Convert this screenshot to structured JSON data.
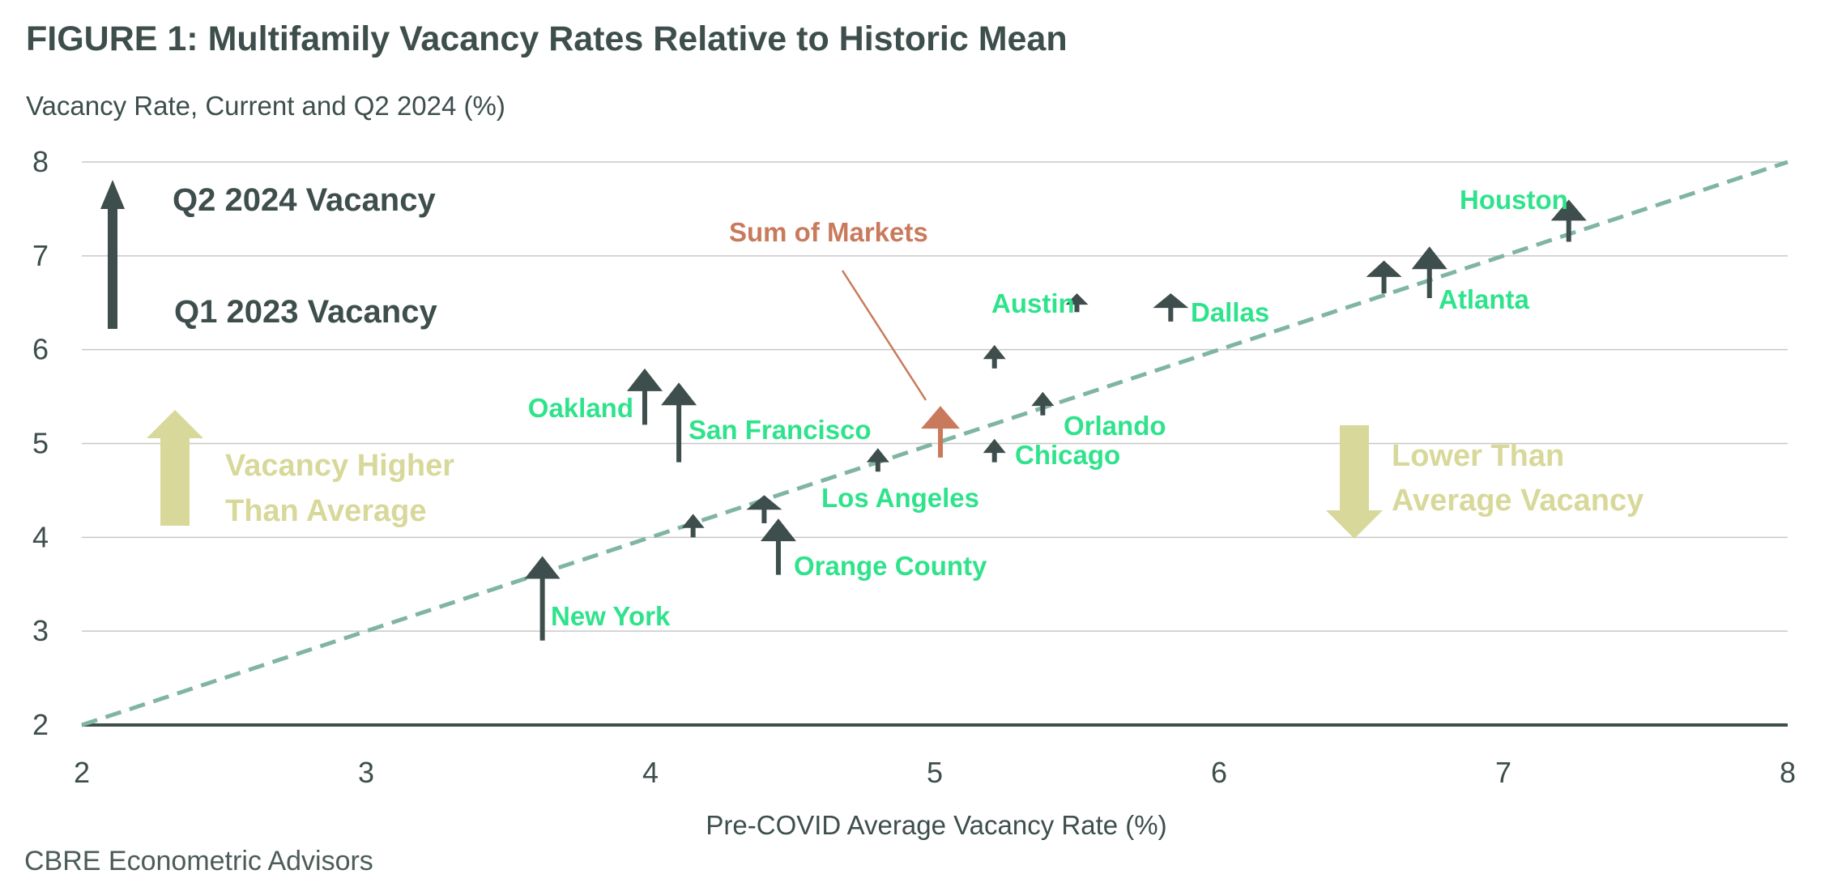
{
  "header": {
    "title": "FIGURE 1: Multifamily Vacancy Rates Relative to Historic Mean",
    "subtitle": "Vacancy Rate, Current and Q2 2024 (%)"
  },
  "footer": {
    "source": "CBRE Econometric Advisors"
  },
  "legend": {
    "top_label": "Q2 2024 Vacancy",
    "bottom_label": "Q1 2023 Vacancy"
  },
  "annotations": {
    "higher": [
      "Vacancy Higher",
      "Than Average"
    ],
    "lower": [
      "Lower Than",
      "Average Vacancy"
    ],
    "sum_label": "Sum of Markets"
  },
  "colors": {
    "arrow": "#3d4e4c",
    "market_label": "#2ee38b",
    "sum_arrow": "#c97a5c",
    "diagonal": "#7fb5a2",
    "note": "#d8d89a",
    "grid": "#c8c8c8",
    "axis": "#3d4e4c"
  },
  "chart_data": {
    "type": "scatter",
    "xlabel": "Pre-COVID Average Vacancy Rate (%)",
    "ylabel": "",
    "xlim": [
      2,
      8
    ],
    "ylim": [
      2,
      8
    ],
    "xticks": [
      "2",
      "3",
      "4",
      "5",
      "6",
      "7",
      "8"
    ],
    "yticks": [
      "2",
      "3",
      "4",
      "5",
      "6",
      "7",
      "8"
    ],
    "grid": "horizontal",
    "reference_line": "y = x (dashed)",
    "series": [
      {
        "points": [
          {
            "label": "New York",
            "x": 3.62,
            "y_from": 2.9,
            "y_to": 3.8
          },
          {
            "label": "Oakland",
            "x": 3.98,
            "y_from": 5.2,
            "y_to": 5.8
          },
          {
            "label": "San Francisco",
            "x": 4.1,
            "y_from": 4.8,
            "y_to": 5.65
          },
          {
            "label": "",
            "x": 4.15,
            "y_from": 4.0,
            "y_to": 4.25
          },
          {
            "label": "",
            "x": 4.4,
            "y_from": 4.15,
            "y_to": 4.45
          },
          {
            "label": "Orange County",
            "x": 4.45,
            "y_from": 3.6,
            "y_to": 4.2
          },
          {
            "label": "Los Angeles",
            "x": 4.8,
            "y_from": 4.7,
            "y_to": 4.95
          },
          {
            "label": "Sum of Markets",
            "x": 5.02,
            "y_from": 4.85,
            "y_to": 5.4
          },
          {
            "label": "",
            "x": 5.21,
            "y_from": 5.8,
            "y_to": 6.05
          },
          {
            "label": "Chicago",
            "x": 5.21,
            "y_from": 4.8,
            "y_to": 5.05
          },
          {
            "label": "Orlando",
            "x": 5.38,
            "y_from": 5.3,
            "y_to": 5.55
          },
          {
            "label": "Austin",
            "x": 5.5,
            "y_from": 6.4,
            "y_to": 6.6
          },
          {
            "label": "Dallas",
            "x": 5.83,
            "y_from": 6.3,
            "y_to": 6.6
          },
          {
            "label": "",
            "x": 6.58,
            "y_from": 6.6,
            "y_to": 6.95
          },
          {
            "label": "Atlanta",
            "x": 6.74,
            "y_from": 6.55,
            "y_to": 7.1
          },
          {
            "label": "Houston",
            "x": 7.23,
            "y_from": 7.15,
            "y_to": 7.6
          }
        ]
      }
    ]
  }
}
